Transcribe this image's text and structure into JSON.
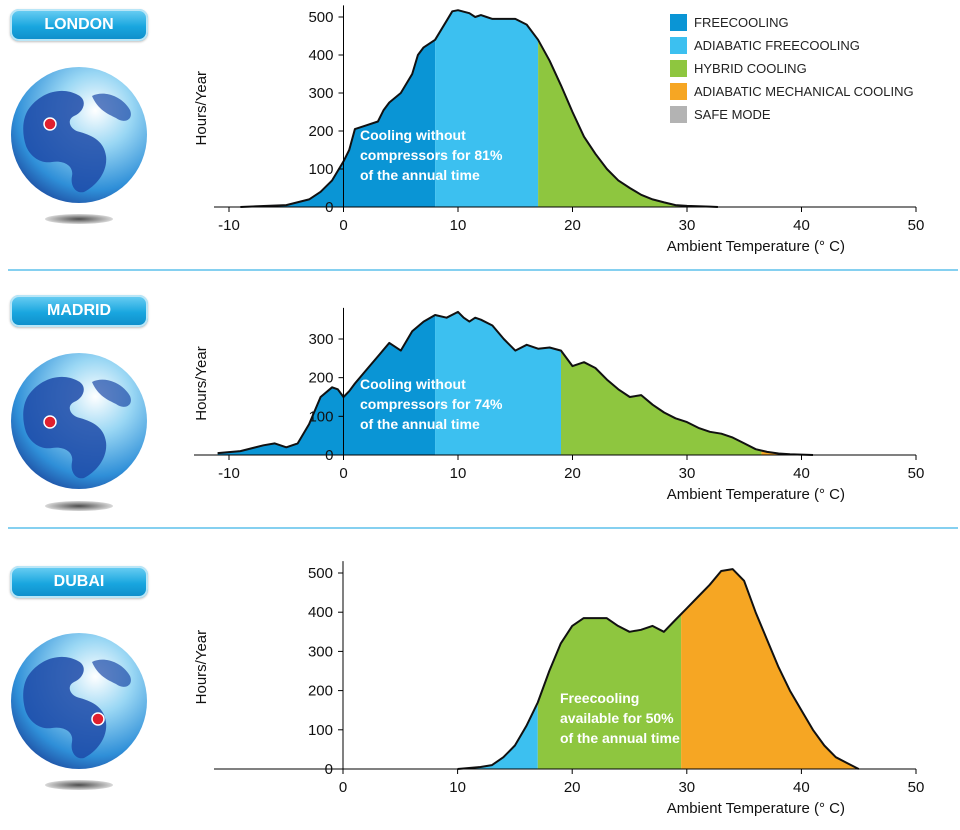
{
  "legend": [
    {
      "label": "FREECOOLING",
      "color": "#0a95d5"
    },
    {
      "label": "ADIABATIC FREECOOLING",
      "color": "#3cc0f0"
    },
    {
      "label": "HYBRID COOLING",
      "color": "#8ec63f"
    },
    {
      "label": "ADIABATIC MECHANICAL COOLING",
      "color": "#f6a623"
    },
    {
      "label": "SAFE MODE",
      "color": "#b3b3b3"
    }
  ],
  "chart_data": [
    {
      "type": "area",
      "badge": "LONDON",
      "ylabel": "Hours/Year",
      "xlabel": "Ambient Temperature (° C)",
      "xlim": [
        -10,
        50
      ],
      "ylim": [
        0,
        520
      ],
      "xticks": [
        -10,
        0,
        10,
        20,
        30,
        40,
        50
      ],
      "yticks": [
        0,
        100,
        200,
        300,
        400,
        500
      ],
      "annotation": [
        "Cooling without",
        "compressors for 81%",
        "of the annual time"
      ],
      "bands": [
        {
          "from": -10,
          "to": 8,
          "color": "#0a95d5"
        },
        {
          "from": 8,
          "to": 17,
          "color": "#3cc0f0"
        },
        {
          "from": 17,
          "to": 40,
          "color": "#8ec63f"
        }
      ],
      "series": [
        {
          "x": [
            -9,
            -5,
            -3,
            -2,
            -1,
            0,
            0.5,
            1,
            2,
            3,
            3.5,
            4,
            5,
            6,
            6.5,
            7,
            8,
            9,
            9.5,
            10,
            11,
            11.5,
            12,
            12.5,
            13,
            14,
            15,
            16,
            17,
            18,
            19,
            20,
            21,
            22,
            23,
            24,
            25,
            26,
            27,
            28,
            29,
            30,
            31,
            32,
            32.7
          ],
          "y": [
            0,
            5,
            20,
            40,
            70,
            120,
            150,
            205,
            215,
            225,
            255,
            275,
            300,
            350,
            400,
            420,
            440,
            490,
            515,
            518,
            510,
            500,
            505,
            500,
            495,
            495,
            495,
            480,
            440,
            385,
            320,
            250,
            185,
            140,
            100,
            70,
            50,
            32,
            20,
            12,
            5,
            3,
            2,
            1,
            0
          ]
        }
      ]
    },
    {
      "type": "area",
      "badge": "MADRID",
      "ylabel": "Hours/Year",
      "xlabel": "Ambient Temperature (° C)",
      "xlim": [
        -10,
        50
      ],
      "ylim": [
        0,
        370
      ],
      "xticks": [
        -10,
        0,
        10,
        20,
        30,
        40,
        50
      ],
      "yticks": [
        0,
        100,
        200,
        300
      ],
      "annotation": [
        "Cooling without",
        "compressors for 74%",
        "of the annual time"
      ],
      "bands": [
        {
          "from": -11,
          "to": 8,
          "color": "#0a95d5"
        },
        {
          "from": 8,
          "to": 19,
          "color": "#3cc0f0"
        },
        {
          "from": 19,
          "to": 36.5,
          "color": "#8ec63f"
        },
        {
          "from": 36.5,
          "to": 41,
          "color": "#f6a623"
        }
      ],
      "series": [
        {
          "x": [
            -11,
            -9,
            -7,
            -6,
            -5,
            -4,
            -3,
            -2,
            -1,
            -0.5,
            0,
            0.5,
            1,
            2,
            3,
            4,
            4.5,
            5,
            6,
            7,
            8,
            9,
            10,
            10.5,
            11,
            11.5,
            12,
            13,
            14,
            15,
            16,
            17,
            18,
            19,
            20,
            21,
            22,
            23,
            24,
            25,
            26,
            27,
            28,
            29,
            30,
            31,
            32,
            33,
            34,
            35,
            36,
            37,
            38,
            39,
            40,
            41
          ],
          "y": [
            5,
            10,
            25,
            30,
            20,
            30,
            80,
            150,
            175,
            170,
            150,
            165,
            185,
            220,
            255,
            290,
            280,
            270,
            320,
            345,
            362,
            355,
            370,
            355,
            345,
            355,
            350,
            335,
            300,
            270,
            285,
            275,
            278,
            270,
            230,
            240,
            225,
            195,
            170,
            150,
            155,
            130,
            110,
            95,
            85,
            70,
            60,
            55,
            45,
            30,
            15,
            8,
            4,
            2,
            1,
            0
          ]
        }
      ]
    },
    {
      "type": "area",
      "badge": "DUBAI",
      "ylabel": "Hours/Year",
      "xlabel": "Ambient Temperature (° C)",
      "xlim": [
        0,
        50
      ],
      "ylim": [
        0,
        520
      ],
      "xticks": [
        0,
        10,
        20,
        30,
        40,
        50
      ],
      "yticks": [
        0,
        100,
        200,
        300,
        400,
        500
      ],
      "annotation": [
        "Freecooling",
        "available for 50%",
        "of the annual time"
      ],
      "bands": [
        {
          "from": 10,
          "to": 17,
          "color": "#3cc0f0"
        },
        {
          "from": 17,
          "to": 29.5,
          "color": "#8ec63f"
        },
        {
          "from": 29.5,
          "to": 46,
          "color": "#f6a623"
        }
      ],
      "series": [
        {
          "x": [
            10,
            12,
            13,
            14,
            15,
            16,
            17,
            18,
            19,
            20,
            21,
            22,
            23,
            24,
            25,
            26,
            27,
            28,
            29,
            30,
            31,
            32,
            33,
            34,
            35,
            36,
            37,
            38,
            39,
            40,
            41,
            42,
            43,
            44,
            45
          ],
          "y": [
            0,
            5,
            10,
            30,
            60,
            110,
            170,
            250,
            320,
            365,
            385,
            385,
            385,
            365,
            350,
            355,
            365,
            350,
            380,
            410,
            440,
            470,
            505,
            510,
            480,
            400,
            330,
            260,
            200,
            150,
            100,
            60,
            30,
            15,
            0
          ]
        }
      ]
    }
  ]
}
